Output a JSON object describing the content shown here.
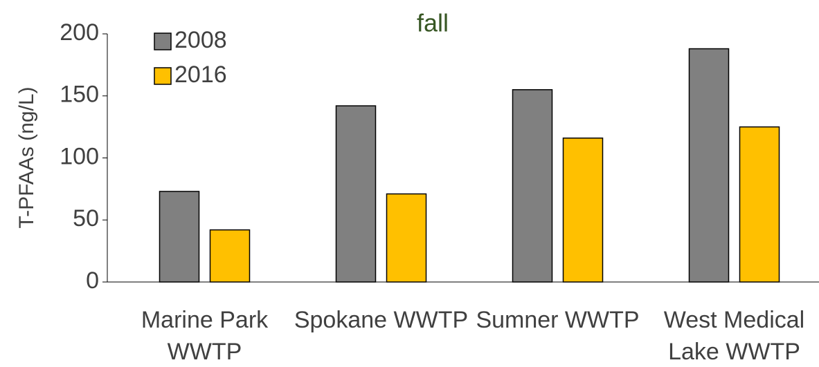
{
  "chart_data": {
    "type": "bar",
    "title": "fall",
    "ylabel": "T-PFAAs (ng/L)",
    "categories": [
      "Marine Park WWTP",
      "Spokane WWTP",
      "Sumner WWTP",
      "West Medical Lake WWTP"
    ],
    "series": [
      {
        "name": "2008",
        "color": "#808080",
        "values": [
          73,
          142,
          155,
          188
        ]
      },
      {
        "name": "2016",
        "color": "#FFC000",
        "values": [
          42,
          71,
          116,
          125
        ]
      }
    ],
    "ylim": [
      0,
      200
    ],
    "yticks": [
      0,
      50,
      100,
      150,
      200
    ],
    "grid": false,
    "legend": "upper left"
  }
}
